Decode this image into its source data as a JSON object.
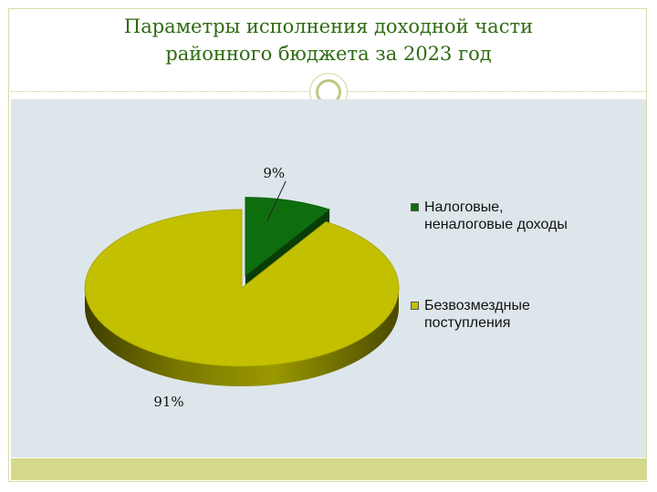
{
  "title": {
    "line1": "Параметры исполнения доходной части",
    "line2": "районного бюджета за 2023 год"
  },
  "chart_data": {
    "type": "pie",
    "categories": [
      "Налоговые, неналоговые доходы",
      "Безвозмездные поступления"
    ],
    "values": [
      9,
      91
    ],
    "labels": [
      "9%",
      "91%"
    ],
    "colors": [
      "#0e6e0e",
      "#c2c000"
    ],
    "legend_position": "right",
    "style": "3d-exploded"
  },
  "legend": {
    "items": [
      {
        "line1": "Налоговые,",
        "line2": "неналоговые доходы",
        "color": "#0e6e0e"
      },
      {
        "line1": "Безвозмездные",
        "line2": "поступления",
        "color": "#c2c000"
      }
    ]
  }
}
